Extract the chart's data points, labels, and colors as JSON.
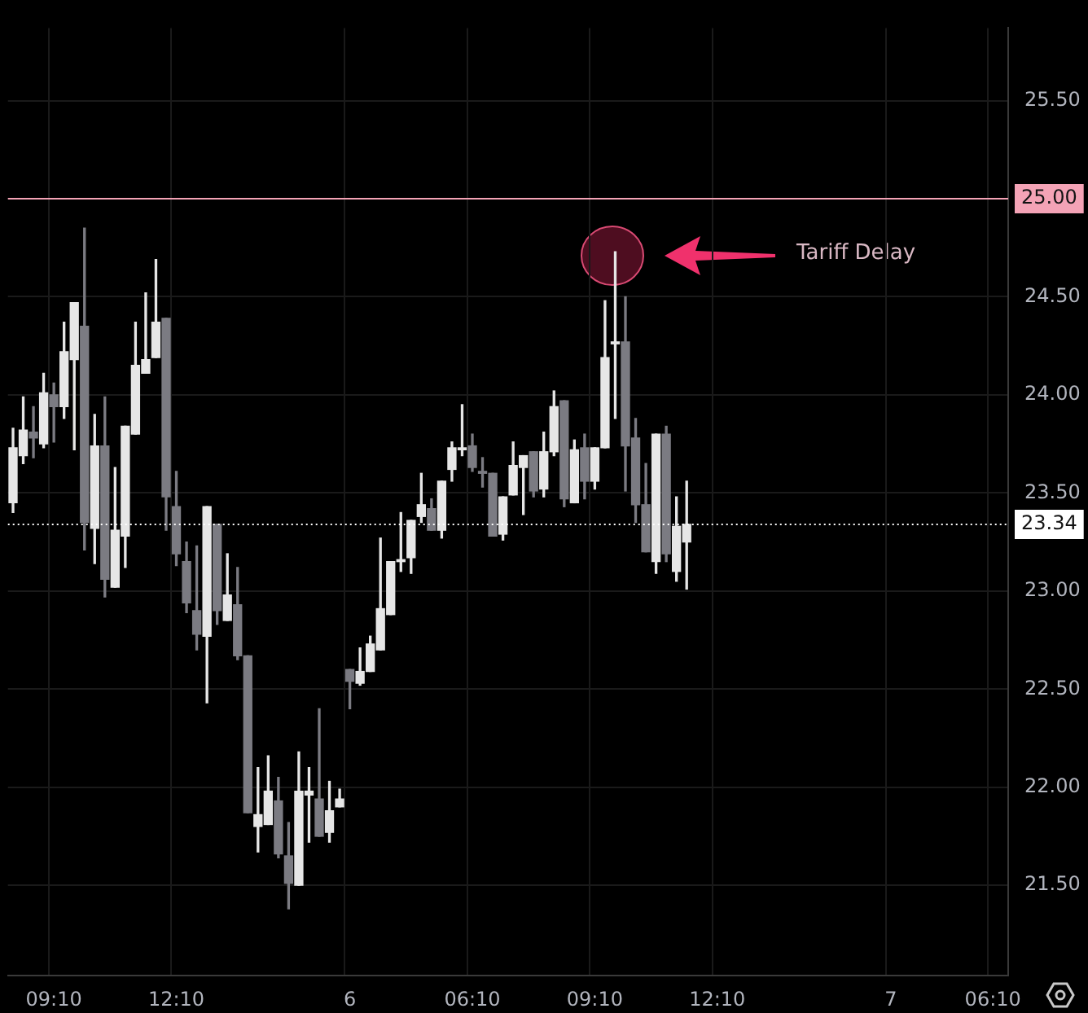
{
  "chart_data": {
    "type": "candlestick",
    "categories": [
      null,
      null,
      null,
      null,
      "09:10",
      null,
      null,
      null,
      null,
      null,
      null,
      null,
      null,
      null,
      null,
      null,
      "12:10",
      null,
      null,
      null,
      null,
      null,
      null,
      null,
      null,
      null,
      null,
      null,
      null,
      null,
      null,
      null,
      null,
      "6",
      null,
      null,
      null,
      null,
      null,
      null,
      null,
      null,
      null,
      null,
      null,
      "06:10",
      null,
      null,
      null,
      null,
      null,
      null,
      null,
      null,
      null,
      null,
      null,
      "09:10",
      null,
      null,
      null,
      null,
      null,
      null,
      null,
      null,
      null,
      null,
      null,
      "12:10",
      null,
      null,
      null,
      null,
      null,
      null,
      null,
      null,
      null,
      null,
      null,
      null,
      null,
      null,
      null,
      null,
      "7",
      null,
      null,
      null,
      null,
      null,
      null,
      null,
      null,
      null,
      "06:10",
      null
    ],
    "ohlc": [
      [
        23.45,
        23.83,
        23.4,
        23.73
      ],
      [
        23.69,
        23.99,
        23.65,
        23.82
      ],
      [
        23.81,
        23.94,
        23.68,
        23.78
      ],
      [
        23.75,
        24.11,
        23.73,
        24.01
      ],
      [
        24.0,
        24.06,
        23.76,
        23.94
      ],
      [
        23.94,
        24.37,
        23.88,
        24.22
      ],
      [
        24.18,
        24.47,
        23.72,
        24.47
      ],
      [
        24.35,
        24.85,
        23.21,
        23.35
      ],
      [
        23.32,
        23.9,
        23.14,
        23.74
      ],
      [
        23.74,
        23.99,
        22.97,
        23.06
      ],
      [
        23.02,
        23.63,
        23.02,
        23.31
      ],
      [
        23.28,
        23.84,
        23.12,
        23.84
      ],
      [
        23.8,
        24.37,
        23.8,
        24.15
      ],
      [
        24.11,
        24.52,
        24.11,
        24.18
      ],
      [
        24.19,
        24.69,
        24.19,
        24.37
      ],
      [
        24.39,
        24.39,
        23.31,
        23.48
      ],
      [
        23.43,
        23.61,
        23.13,
        23.19
      ],
      [
        23.15,
        23.25,
        22.89,
        22.94
      ],
      [
        22.9,
        23.23,
        22.7,
        22.78
      ],
      [
        22.77,
        23.43,
        22.43,
        23.43
      ],
      [
        23.34,
        23.34,
        22.83,
        22.9
      ],
      [
        22.85,
        23.19,
        22.85,
        22.98
      ],
      [
        22.93,
        23.12,
        22.65,
        22.67
      ],
      [
        22.67,
        22.67,
        21.87,
        21.87
      ],
      [
        21.8,
        22.1,
        21.67,
        21.86
      ],
      [
        21.81,
        22.16,
        21.81,
        21.98
      ],
      [
        21.93,
        22.05,
        21.64,
        21.66
      ],
      [
        21.65,
        21.82,
        21.38,
        21.51
      ],
      [
        21.5,
        22.18,
        21.5,
        21.98
      ],
      [
        21.96,
        22.1,
        21.72,
        21.98
      ],
      [
        21.94,
        22.4,
        21.75,
        21.75
      ],
      [
        21.77,
        22.03,
        21.72,
        21.88
      ],
      [
        21.9,
        21.99,
        21.9,
        21.94
      ],
      [
        22.6,
        22.6,
        22.4,
        22.54
      ],
      [
        22.53,
        22.71,
        22.52,
        22.59
      ],
      [
        22.59,
        22.77,
        22.59,
        22.73
      ],
      [
        22.7,
        23.27,
        22.7,
        22.91
      ],
      [
        22.88,
        23.15,
        22.88,
        23.15
      ],
      [
        23.15,
        23.4,
        23.1,
        23.16
      ],
      [
        23.17,
        23.36,
        23.09,
        23.36
      ],
      [
        23.38,
        23.6,
        23.35,
        23.44
      ],
      [
        23.42,
        23.47,
        23.31,
        23.31
      ],
      [
        23.31,
        23.56,
        23.27,
        23.56
      ],
      [
        23.62,
        23.76,
        23.56,
        23.73
      ],
      [
        23.72,
        23.95,
        23.69,
        23.73
      ],
      [
        23.74,
        23.8,
        23.61,
        23.63
      ],
      [
        23.61,
        23.68,
        23.53,
        23.6
      ],
      [
        23.6,
        23.6,
        23.28,
        23.28
      ],
      [
        23.29,
        23.48,
        23.26,
        23.48
      ],
      [
        23.49,
        23.76,
        23.49,
        23.64
      ],
      [
        23.63,
        23.69,
        23.39,
        23.69
      ],
      [
        23.71,
        23.71,
        23.48,
        23.51
      ],
      [
        23.52,
        23.81,
        23.48,
        23.71
      ],
      [
        23.71,
        24.02,
        23.69,
        23.94
      ],
      [
        23.97,
        23.97,
        23.43,
        23.47
      ],
      [
        23.45,
        23.77,
        23.45,
        23.72
      ],
      [
        23.73,
        23.8,
        23.47,
        23.56
      ],
      [
        23.56,
        23.73,
        23.52,
        23.73
      ],
      [
        23.73,
        24.48,
        23.73,
        24.19
      ],
      [
        24.26,
        24.73,
        23.88,
        24.27
      ],
      [
        24.27,
        24.5,
        23.51,
        23.74
      ],
      [
        23.78,
        23.88,
        23.35,
        23.44
      ],
      [
        23.44,
        23.65,
        23.2,
        23.2
      ],
      [
        23.15,
        23.8,
        23.09,
        23.8
      ],
      [
        23.8,
        23.84,
        23.15,
        23.19
      ],
      [
        23.1,
        23.48,
        23.05,
        23.33
      ],
      [
        23.25,
        23.56,
        23.01,
        23.34
      ],
      null,
      null,
      null,
      null,
      null,
      null,
      null,
      null,
      null,
      null,
      null,
      null,
      null,
      null,
      null,
      null,
      null,
      null,
      null,
      null,
      null,
      null,
      null,
      null,
      null,
      null,
      null,
      null,
      null,
      null,
      null
    ],
    "colors": [
      "#e6e6e6",
      "#e6e6e6",
      "#7b7b82",
      "#e6e6e6",
      "#7b7b82",
      "#e6e6e6",
      "#e6e6e6",
      "#7b7b82",
      "#e6e6e6",
      "#7b7b82",
      "#e6e6e6",
      "#e6e6e6",
      "#e6e6e6",
      "#e6e6e6",
      "#e6e6e6",
      "#7b7b82",
      "#7b7b82",
      "#7b7b82",
      "#7b7b82",
      "#e6e6e6",
      "#7b7b82",
      "#e6e6e6",
      "#7b7b82",
      "#7b7b82",
      "#e6e6e6",
      "#e6e6e6",
      "#7b7b82",
      "#7b7b82",
      "#e6e6e6",
      "#e6e6e6",
      "#7b7b82",
      "#e6e6e6",
      "#e6e6e6",
      "#7b7b82",
      "#e6e6e6",
      "#e6e6e6",
      "#e6e6e6",
      "#e6e6e6",
      "#e6e6e6",
      "#e6e6e6",
      "#e6e6e6",
      "#7b7b82",
      "#e6e6e6",
      "#e6e6e6",
      "#e6e6e6",
      "#7b7b82",
      "#7b7b82",
      "#7b7b82",
      "#e6e6e6",
      "#e6e6e6",
      "#e6e6e6",
      "#7b7b82",
      "#e6e6e6",
      "#e6e6e6",
      "#7b7b82",
      "#e6e6e6",
      "#7b7b82",
      "#e6e6e6",
      "#e6e6e6",
      "#e6e6e6",
      "#7b7b82",
      "#7b7b82",
      "#7b7b82",
      "#e6e6e6",
      "#7b7b82",
      "#e6e6e6",
      "#e6e6e6",
      null,
      null,
      null,
      null,
      null,
      null,
      null,
      null,
      null,
      null,
      null,
      null,
      null,
      null,
      null,
      null,
      null,
      null,
      null,
      null,
      null,
      null,
      null,
      null,
      null,
      null,
      null,
      null,
      null,
      null,
      null
    ],
    "ylim": [
      21.04,
      25.87
    ],
    "yticks": [
      {
        "value": 21.5,
        "label": "21.50"
      },
      {
        "value": 22,
        "label": "22.00"
      },
      {
        "value": 22.5,
        "label": "22.50"
      },
      {
        "value": 23,
        "label": "23.00"
      },
      {
        "value": 23.5,
        "label": "23.50"
      },
      {
        "value": 24,
        "label": "24.00"
      },
      {
        "value": 24.5,
        "label": "24.50"
      },
      {
        "value": 25,
        "label": null
      },
      {
        "value": 25.5,
        "label": "25.50"
      }
    ],
    "ref_lines": [
      {
        "axis": "y",
        "value": 25,
        "label": "25.00",
        "color": "#f4a3b6",
        "line_style": "solid"
      },
      {
        "axis": "y",
        "value": 23.34,
        "label": "23.34",
        "color": "#ffffff",
        "line_style": "dotted"
      }
    ],
    "annotations": [
      "Tariff Delay"
    ],
    "grid": true,
    "legend": false
  }
}
